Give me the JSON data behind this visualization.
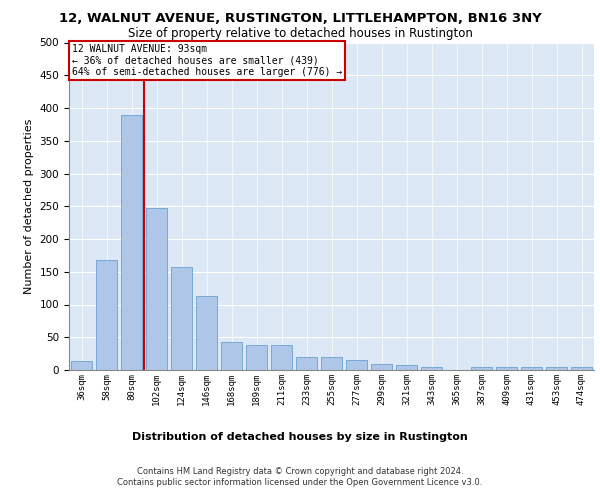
{
  "title1": "12, WALNUT AVENUE, RUSTINGTON, LITTLEHAMPTON, BN16 3NY",
  "title2": "Size of property relative to detached houses in Rustington",
  "xlabel": "Distribution of detached houses by size in Rustington",
  "ylabel": "Number of detached properties",
  "categories": [
    "36sqm",
    "58sqm",
    "80sqm",
    "102sqm",
    "124sqm",
    "146sqm",
    "168sqm",
    "189sqm",
    "211sqm",
    "233sqm",
    "255sqm",
    "277sqm",
    "299sqm",
    "321sqm",
    "343sqm",
    "365sqm",
    "387sqm",
    "409sqm",
    "431sqm",
    "453sqm",
    "474sqm"
  ],
  "values": [
    13,
    168,
    390,
    248,
    157,
    113,
    43,
    38,
    38,
    20,
    20,
    15,
    9,
    7,
    5,
    0,
    5,
    4,
    5,
    4,
    5
  ],
  "bar_color": "#aec6e8",
  "bar_edge_color": "#5a96c8",
  "vline_x": 2.5,
  "vline_color": "#cc0000",
  "annotation_line1": "12 WALNUT AVENUE: 93sqm",
  "annotation_line2": "← 36% of detached houses are smaller (439)",
  "annotation_line3": "64% of semi-detached houses are larger (776) →",
  "annotation_box_color": "#cc0000",
  "ylim": [
    0,
    500
  ],
  "yticks": [
    0,
    50,
    100,
    150,
    200,
    250,
    300,
    350,
    400,
    450,
    500
  ],
  "background_color": "#dce8f5",
  "footer": "Contains HM Land Registry data © Crown copyright and database right 2024.\nContains public sector information licensed under the Open Government Licence v3.0.",
  "title1_fontsize": 9.5,
  "title2_fontsize": 8.5,
  "xlabel_fontsize": 8,
  "ylabel_fontsize": 8
}
